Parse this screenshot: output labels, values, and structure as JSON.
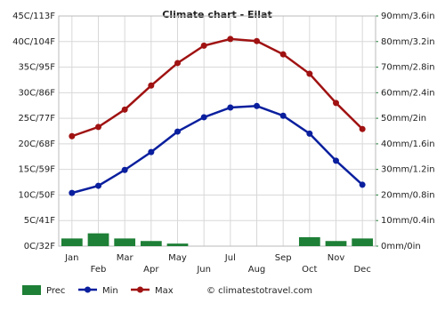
{
  "chart_data": {
    "type": "line",
    "title": "Climate chart - Eilat",
    "categories": [
      "Jan",
      "Feb",
      "Mar",
      "Apr",
      "May",
      "Jun",
      "Jul",
      "Aug",
      "Sep",
      "Oct",
      "Nov",
      "Dec"
    ],
    "series": [
      {
        "name": "Prec",
        "type": "bar",
        "axis": "y2",
        "color": "#1e7f36",
        "values": [
          3,
          5,
          3,
          2,
          1,
          0,
          0,
          0,
          0,
          3.5,
          2,
          3
        ]
      },
      {
        "name": "Min",
        "type": "line",
        "color": "#0a1f9e",
        "values": [
          10.4,
          11.8,
          14.9,
          18.4,
          22.4,
          25.2,
          27.1,
          27.4,
          25.5,
          22,
          16.7,
          12
        ]
      },
      {
        "name": "Max",
        "type": "line",
        "color": "#a01212",
        "values": [
          21.5,
          23.3,
          26.7,
          31.4,
          35.8,
          39.2,
          40.5,
          40.1,
          37.5,
          33.7,
          28,
          22.9
        ]
      }
    ],
    "ylim": [
      0,
      45
    ],
    "yticks": [
      {
        "value": 0,
        "label": "0C/32F"
      },
      {
        "value": 5,
        "label": "5C/41F"
      },
      {
        "value": 10,
        "label": "10C/50F"
      },
      {
        "value": 15,
        "label": "15C/59F"
      },
      {
        "value": 20,
        "label": "20C/68F"
      },
      {
        "value": 25,
        "label": "25C/77F"
      },
      {
        "value": 30,
        "label": "30C/86F"
      },
      {
        "value": 35,
        "label": "35C/95F"
      },
      {
        "value": 40,
        "label": "40C/104F"
      },
      {
        "value": 45,
        "label": "45C/113F"
      }
    ],
    "y2lim": [
      0,
      90
    ],
    "y2ticks": [
      {
        "value": 0,
        "label": "0mm/0in"
      },
      {
        "value": 10,
        "label": "10mm/0.4in"
      },
      {
        "value": 20,
        "label": "20mm/0.8in"
      },
      {
        "value": 30,
        "label": "30mm/1.2in"
      },
      {
        "value": 40,
        "label": "40mm/1.6in"
      },
      {
        "value": 50,
        "label": "50mm/2in"
      },
      {
        "value": 60,
        "label": "60mm/2.4in"
      },
      {
        "value": 70,
        "label": "70mm/2.8in"
      },
      {
        "value": 80,
        "label": "80mm/3.2in"
      },
      {
        "value": 90,
        "label": "90mm/3.6in"
      }
    ],
    "grid": true,
    "credit": "© climatestotravel.com"
  }
}
